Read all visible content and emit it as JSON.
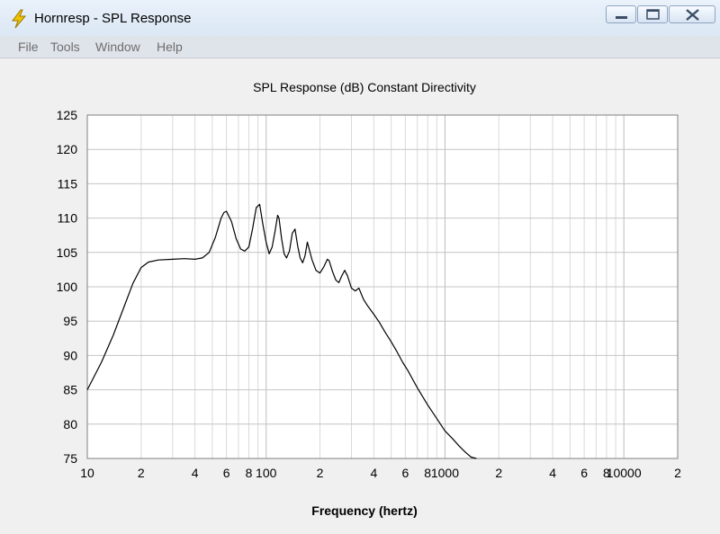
{
  "window": {
    "title": "Hornresp - SPL Response",
    "controls": {
      "minimize": "minimize",
      "maximize": "maximize",
      "close": "close"
    }
  },
  "menu": {
    "items": [
      "File",
      "Tools",
      "Window",
      "Help"
    ]
  },
  "icons": {
    "app": "lightning-icon",
    "minimize": "minimize-icon",
    "maximize": "maximize-icon",
    "close": "close-icon"
  },
  "chart_data": {
    "type": "line",
    "title": "SPL Response (dB)   Constant Directivity",
    "xlabel": "Frequency (hertz)",
    "ylabel": "",
    "xscale": "log",
    "xlim": [
      10,
      20000
    ],
    "ylim": [
      75,
      125
    ],
    "grid": true,
    "x_tick_labels": [
      "10",
      "2",
      "4",
      "6",
      "8",
      "100",
      "2",
      "4",
      "6",
      "8",
      "1000",
      "2",
      "4",
      "6",
      "8",
      "10000",
      "2"
    ],
    "x_tick_values": [
      10,
      20,
      40,
      60,
      80,
      100,
      200,
      400,
      600,
      800,
      1000,
      2000,
      4000,
      6000,
      8000,
      10000,
      20000
    ],
    "y_tick_labels": [
      "125",
      "120",
      "115",
      "110",
      "105",
      "100",
      "95",
      "90",
      "85",
      "80",
      "75"
    ],
    "y_tick_values": [
      125,
      120,
      115,
      110,
      105,
      100,
      95,
      90,
      85,
      80,
      75
    ],
    "series": [
      {
        "line_color": "#000000",
        "x": [
          10,
          12,
          14,
          16,
          18,
          20,
          22,
          25,
          30,
          35,
          40,
          44,
          48,
          52,
          56,
          58,
          60,
          64,
          68,
          72,
          76,
          80,
          84,
          88,
          92,
          96,
          100,
          104,
          108,
          112,
          116,
          118,
          122,
          126,
          130,
          135,
          140,
          145,
          150,
          155,
          160,
          165,
          170,
          180,
          190,
          200,
          210,
          220,
          225,
          235,
          245,
          255,
          265,
          275,
          285,
          300,
          315,
          330,
          350,
          370,
          400,
          430,
          460,
          500,
          540,
          580,
          620,
          660,
          700,
          750,
          800,
          900,
          1000,
          1100,
          1200,
          1300,
          1400,
          1500
        ],
        "y": [
          85.0,
          89.0,
          93.0,
          97.0,
          100.5,
          102.8,
          103.6,
          103.9,
          104.0,
          104.1,
          104.0,
          104.2,
          105.0,
          107.2,
          110.0,
          110.8,
          111.0,
          109.5,
          107.0,
          105.5,
          105.2,
          105.8,
          108.5,
          111.5,
          112.0,
          109.0,
          106.5,
          104.8,
          105.8,
          108.0,
          110.4,
          110.0,
          107.0,
          104.8,
          104.2,
          105.2,
          107.8,
          108.4,
          106.0,
          104.2,
          103.5,
          104.5,
          106.5,
          104.0,
          102.4,
          102.0,
          102.9,
          104.0,
          103.8,
          102.2,
          101.0,
          100.6,
          101.6,
          102.4,
          101.6,
          99.8,
          99.4,
          99.8,
          98.2,
          97.2,
          96.0,
          94.8,
          93.5,
          92.0,
          90.5,
          89.0,
          87.8,
          86.5,
          85.3,
          84.0,
          82.8,
          80.8,
          79.0,
          77.9,
          76.8,
          75.9,
          75.2,
          75.0
        ]
      }
    ]
  }
}
